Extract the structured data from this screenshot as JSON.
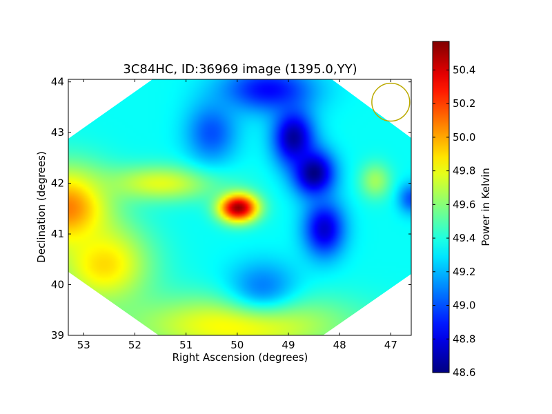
{
  "chart_data": {
    "type": "heatmap",
    "title": "3C84HC, ID:36969 image (1395.0,YY)",
    "xlabel": "Right Ascension (degrees)",
    "ylabel": "Declination (degrees)",
    "xlim": [
      53.3,
      46.6
    ],
    "ylim": [
      39,
      44.05
    ],
    "x_ticks": [
      53,
      52,
      51,
      50,
      49,
      48,
      47
    ],
    "y_ticks": [
      39,
      40,
      41,
      42,
      43,
      44
    ],
    "colorbar": {
      "label": "Power in Kelvin",
      "colormap": "jet",
      "range": [
        48.6,
        50.57
      ],
      "ticks": [
        "48.6",
        "48.8",
        "49.0",
        "49.2",
        "49.4",
        "49.6",
        "49.8",
        "50.0",
        "50.2",
        "50.4"
      ]
    },
    "base_level": 49.35,
    "features": [
      {
        "ra": 49.98,
        "dec": 41.52,
        "value": 50.55,
        "width_ra": 0.38,
        "width_dec": 0.28
      },
      {
        "ra": 53.3,
        "dec": 41.5,
        "value": 50.1,
        "width_ra": 0.8,
        "width_dec": 0.8
      },
      {
        "ra": 50.0,
        "dec": 39.2,
        "value": 49.85,
        "width_ra": 2.2,
        "width_dec": 0.6
      },
      {
        "ra": 52.6,
        "dec": 40.4,
        "value": 49.9,
        "width_ra": 0.9,
        "width_dec": 0.8
      },
      {
        "ra": 51.5,
        "dec": 42.0,
        "value": 49.78,
        "width_ra": 1.1,
        "width_dec": 0.35
      },
      {
        "ra": 49.4,
        "dec": 43.85,
        "value": 48.85,
        "width_ra": 0.9,
        "width_dec": 0.45
      },
      {
        "ra": 48.9,
        "dec": 42.9,
        "value": 48.65,
        "width_ra": 0.4,
        "width_dec": 0.55
      },
      {
        "ra": 48.5,
        "dec": 42.2,
        "value": 48.6,
        "width_ra": 0.4,
        "width_dec": 0.45
      },
      {
        "ra": 48.3,
        "dec": 41.1,
        "value": 48.75,
        "width_ra": 0.4,
        "width_dec": 0.55
      },
      {
        "ra": 49.5,
        "dec": 40.0,
        "value": 49.1,
        "width_ra": 0.7,
        "width_dec": 0.5
      },
      {
        "ra": 50.5,
        "dec": 43.0,
        "value": 49.0,
        "width_ra": 0.5,
        "width_dec": 0.6
      },
      {
        "ra": 47.3,
        "dec": 42.05,
        "value": 49.65,
        "width_ra": 0.3,
        "width_dec": 0.35
      },
      {
        "ra": 46.6,
        "dec": 41.7,
        "value": 49.0,
        "width_ra": 0.25,
        "width_dec": 0.3
      }
    ],
    "beam_marker": {
      "ra": 47.0,
      "dec": 43.6,
      "radius_deg": 0.37,
      "color": "#bbaa00"
    }
  }
}
